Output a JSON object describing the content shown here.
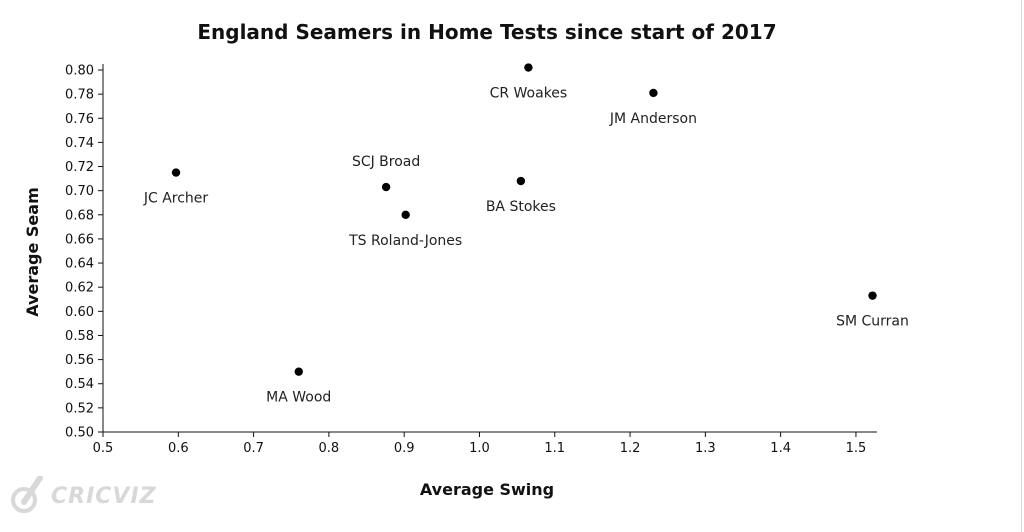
{
  "chart_data": {
    "type": "scatter",
    "title": "England Seamers in Home Tests since start of 2017",
    "xlabel": "Average Swing",
    "ylabel": "Average Seam",
    "xlim": [
      0.5,
      1.52
    ],
    "ylim": [
      0.5,
      0.8
    ],
    "xticks": [
      "0.5",
      "0.6",
      "0.7",
      "0.8",
      "0.9",
      "1.0",
      "1.1",
      "1.2",
      "1.3",
      "1.4",
      "1.5"
    ],
    "yticks": [
      "0.50",
      "0.52",
      "0.54",
      "0.56",
      "0.58",
      "0.60",
      "0.62",
      "0.64",
      "0.66",
      "0.68",
      "0.70",
      "0.72",
      "0.74",
      "0.76",
      "0.78",
      "0.80"
    ],
    "grid": false,
    "points": [
      {
        "label": "CR Woakes",
        "x": 1.065,
        "y": 0.802,
        "label_pos": "below"
      },
      {
        "label": "JM Anderson",
        "x": 1.231,
        "y": 0.781,
        "label_pos": "below"
      },
      {
        "label": "JC Archer",
        "x": 0.597,
        "y": 0.715,
        "label_pos": "below"
      },
      {
        "label": "SCJ Broad",
        "x": 0.876,
        "y": 0.703,
        "label_pos": "above"
      },
      {
        "label": "BA Stokes",
        "x": 1.055,
        "y": 0.708,
        "label_pos": "below"
      },
      {
        "label": "TS Roland-Jones",
        "x": 0.902,
        "y": 0.68,
        "label_pos": "below"
      },
      {
        "label": "SM Curran",
        "x": 1.522,
        "y": 0.613,
        "label_pos": "below"
      },
      {
        "label": "MA Wood",
        "x": 0.76,
        "y": 0.55,
        "label_pos": "below"
      }
    ]
  },
  "branding": {
    "logo_text": "CRICVIZ",
    "logo_icon": "cricket-ball-bat-icon",
    "logo_color": "#d8d8d8"
  }
}
